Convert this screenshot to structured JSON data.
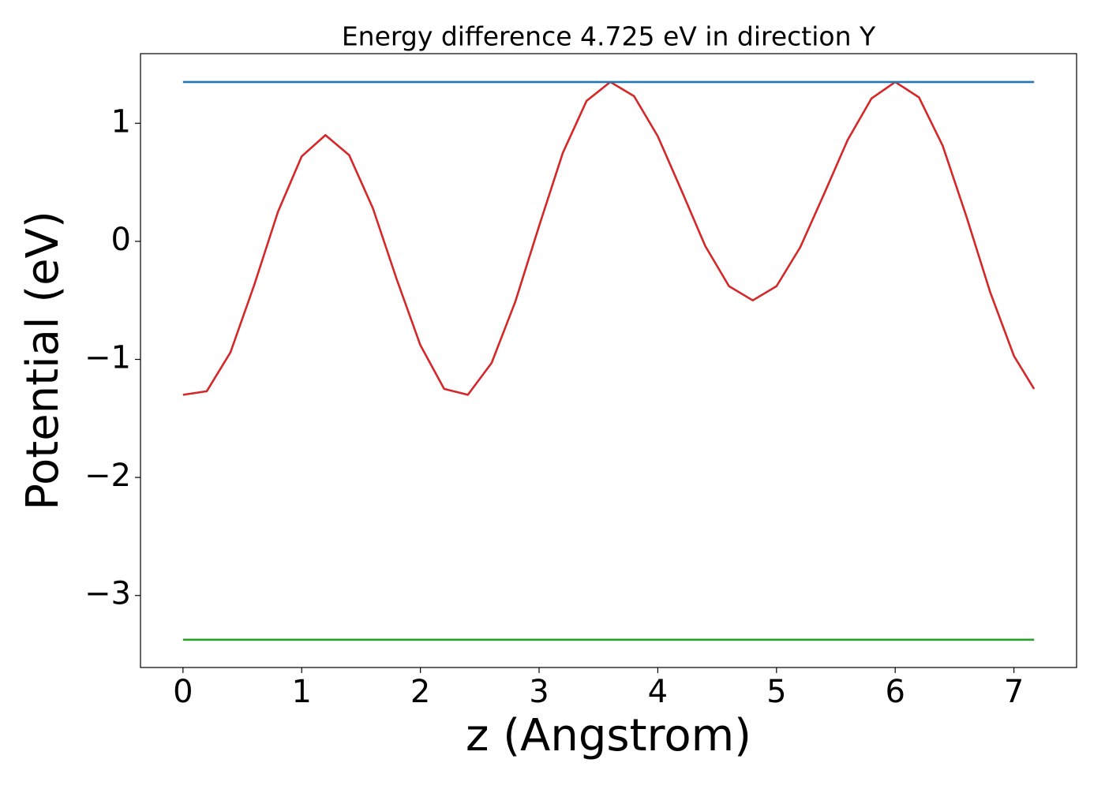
{
  "chart_data": {
    "type": "line",
    "title": "Energy difference 4.725 eV in direction Y",
    "xlabel": "z (Angstrom)",
    "ylabel": "Potential (eV)",
    "series": [
      {
        "color": "#d62728",
        "x": [
          0,
          0.2,
          0.4,
          0.6,
          0.8,
          1.0,
          1.2,
          1.4,
          1.6,
          1.8,
          2.0,
          2.2,
          2.4,
          2.6,
          2.8,
          3.0,
          3.2,
          3.4,
          3.6,
          3.8,
          4.0,
          4.2,
          4.4,
          4.6,
          4.8,
          5.0,
          5.2,
          5.4,
          5.6,
          5.8,
          6.0,
          6.2,
          6.4,
          6.6,
          6.8,
          7.0,
          7.17
        ],
        "values": [
          -1.3,
          -1.27,
          -0.94,
          -0.37,
          0.25,
          0.72,
          0.9,
          0.73,
          0.28,
          -0.32,
          -0.88,
          -1.25,
          -1.3,
          -1.03,
          -0.51,
          0.13,
          0.75,
          1.19,
          1.35,
          1.23,
          0.89,
          0.43,
          -0.04,
          -0.38,
          -0.5,
          -0.38,
          -0.05,
          0.4,
          0.86,
          1.21,
          1.35,
          1.22,
          0.81,
          0.21,
          -0.43,
          -0.97,
          -1.25
        ]
      },
      {
        "color": "#1f77b4",
        "x": [
          0,
          7.17
        ],
        "values": [
          1.35,
          1.35
        ]
      },
      {
        "color": "#2ca02c",
        "x": [
          0,
          7.17
        ],
        "values": [
          -3.375,
          -3.375
        ]
      }
    ],
    "xlim": [
      -0.358,
      7.528
    ],
    "ylim": [
      -3.61,
      1.59
    ],
    "xticks": [
      0,
      1,
      2,
      3,
      4,
      5,
      6,
      7
    ],
    "yticks": [
      {
        "value": -3,
        "label": "−3"
      },
      {
        "value": -2,
        "label": "−2"
      },
      {
        "value": -1,
        "label": "−1"
      },
      0,
      1
    ],
    "grid": false
  }
}
